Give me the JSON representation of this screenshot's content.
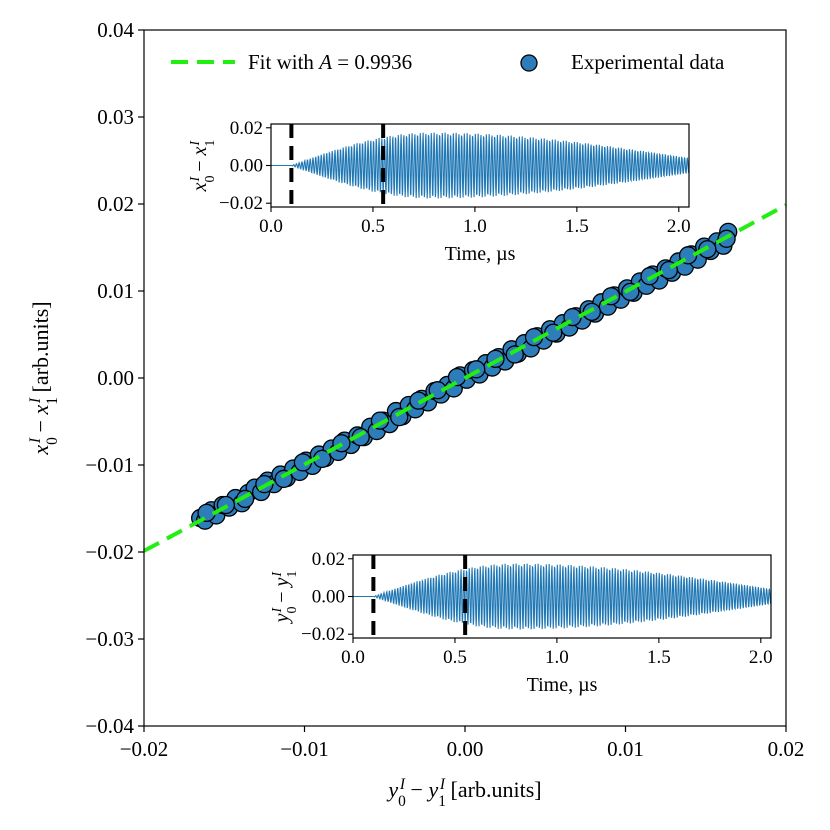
{
  "chart_data": {
    "type": "scatter",
    "main": {
      "xlabel_parts": [
        "y",
        "0",
        "I",
        " − ",
        "y",
        "1",
        "I",
        " [arb.units]"
      ],
      "ylabel_parts": [
        "x",
        "0",
        "I",
        " − ",
        "x",
        "1",
        "I",
        " [arb.units]"
      ],
      "xlim": [
        -0.02,
        0.02
      ],
      "ylim": [
        -0.04,
        0.04
      ],
      "xticks": [
        -0.02,
        -0.01,
        0.0,
        0.01,
        0.02
      ],
      "xtick_labels": [
        "−0.02",
        "−0.01",
        "0.00",
        "0.01",
        "0.02"
      ],
      "yticks": [
        -0.04,
        -0.03,
        -0.02,
        -0.01,
        0.0,
        0.01,
        0.02,
        0.03,
        0.04
      ],
      "ytick_labels": [
        "−0.04",
        "−0.03",
        "−0.02",
        "−0.01",
        "0.00",
        "0.01",
        "0.02",
        "0.03",
        "0.04"
      ],
      "grid": false,
      "legend_position": "top",
      "series": [
        {
          "name": "Fit with A = 0.9936",
          "legend_prefix": "Fit with ",
          "legend_var": "A",
          "legend_suffix": " = 0.9936",
          "kind": "line",
          "style": "dashed",
          "color": "#22ee11",
          "slope": 0.9936,
          "intercept": 0.0,
          "x": [
            -0.02,
            0.02
          ]
        },
        {
          "name": "Experimental data",
          "kind": "scatter",
          "color": "#2e7dbb",
          "edge_color": "#000000",
          "x": [
            -0.0165,
            -0.0162,
            -0.0158,
            -0.0155,
            -0.0151,
            -0.0147,
            -0.0143,
            -0.0139,
            -0.0135,
            -0.0131,
            -0.0127,
            -0.0123,
            -0.0119,
            -0.0115,
            -0.0111,
            -0.0107,
            -0.0103,
            -0.0099,
            -0.0095,
            -0.0091,
            -0.0087,
            -0.0083,
            -0.0079,
            -0.0075,
            -0.0071,
            -0.0067,
            -0.0063,
            -0.0059,
            -0.0055,
            -0.0051,
            -0.0047,
            -0.0043,
            -0.0039,
            -0.0035,
            -0.0031,
            -0.0027,
            -0.0023,
            -0.0019,
            -0.0015,
            -0.0011,
            -0.0007,
            -0.0003,
            0.0001,
            0.0005,
            0.0009,
            0.0013,
            0.0017,
            0.0021,
            0.0025,
            0.0029,
            0.0033,
            0.0037,
            0.0041,
            0.0045,
            0.0049,
            0.0053,
            0.0057,
            0.0061,
            0.0065,
            0.0069,
            0.0073,
            0.0077,
            0.0081,
            0.0085,
            0.0089,
            0.0093,
            0.0097,
            0.0101,
            0.0105,
            0.0109,
            0.0113,
            0.0117,
            0.0121,
            0.0125,
            0.0129,
            0.0133,
            0.0137,
            0.0141,
            0.0145,
            0.0149,
            0.0153,
            0.0157,
            0.0161,
            0.0164,
            -0.0161,
            -0.0149,
            -0.0137,
            -0.0125,
            -0.0113,
            -0.0101,
            -0.0089,
            -0.0077,
            -0.0065,
            -0.0053,
            -0.0041,
            -0.0029,
            -0.0017,
            -0.0005,
            0.0007,
            0.0019,
            0.0031,
            0.0043,
            0.0055,
            0.0067,
            0.0079,
            0.0091,
            0.0103,
            0.0115,
            0.0127,
            0.0139,
            0.0151,
            0.0163
          ],
          "y": [
            -0.0161,
            -0.0164,
            -0.0152,
            -0.0158,
            -0.0146,
            -0.0149,
            -0.0138,
            -0.0144,
            -0.0132,
            -0.0126,
            -0.0131,
            -0.0118,
            -0.0122,
            -0.0111,
            -0.0115,
            -0.0104,
            -0.0108,
            -0.0095,
            -0.0101,
            -0.0088,
            -0.0092,
            -0.0081,
            -0.0085,
            -0.0072,
            -0.0077,
            -0.0066,
            -0.0068,
            -0.0056,
            -0.0061,
            -0.0049,
            -0.0053,
            -0.0038,
            -0.0044,
            -0.0031,
            -0.0036,
            -0.0024,
            -0.0028,
            -0.0015,
            -0.0019,
            -0.0008,
            -0.0012,
            0.0003,
            -0.0002,
            0.0009,
            0.0004,
            0.0017,
            0.0012,
            0.0024,
            0.0019,
            0.0033,
            0.0028,
            0.004,
            0.0034,
            0.0048,
            0.0043,
            0.0056,
            0.0051,
            0.0063,
            0.0058,
            0.0071,
            0.0066,
            0.0079,
            0.0074,
            0.0087,
            0.0082,
            0.0095,
            0.009,
            0.0103,
            0.0098,
            0.0111,
            0.0106,
            0.0119,
            0.0112,
            0.0126,
            0.0121,
            0.0134,
            0.0128,
            0.0142,
            0.0136,
            0.0151,
            0.0146,
            0.0157,
            0.0152,
            0.0168,
            -0.0155,
            -0.0146,
            -0.0139,
            -0.0122,
            -0.0116,
            -0.0097,
            -0.0093,
            -0.0075,
            -0.0068,
            -0.0049,
            -0.0045,
            -0.0026,
            -0.0014,
            0.0001,
            0.001,
            0.0022,
            0.0027,
            0.0047,
            0.0052,
            0.007,
            0.0076,
            0.0094,
            0.0099,
            0.0117,
            0.0124,
            0.0141,
            0.0148,
            0.016
          ]
        }
      ]
    },
    "inset_top": {
      "type": "line",
      "ylabel_parts": [
        "x",
        "0",
        "I",
        " − ",
        "x",
        "1",
        "I"
      ],
      "xlabel": "Time, µs",
      "xlim": [
        0.0,
        2.05
      ],
      "ylim": [
        -0.022,
        0.022
      ],
      "xticks": [
        0.0,
        0.5,
        1.0,
        1.5,
        2.0
      ],
      "xtick_labels": [
        "0.0",
        "0.5",
        "1.0",
        "1.5",
        "2.0"
      ],
      "yticks": [
        -0.02,
        0.0,
        0.02
      ],
      "ytick_labels": [
        "−0.02",
        "0.00",
        "0.02"
      ],
      "signal": {
        "color": "#1f77b4",
        "start": 0.1,
        "peak_time": 0.78,
        "peak_amplitude": 0.0175,
        "end_amplitude": 0.004,
        "period": 0.0135
      },
      "markers": [
        0.1,
        0.55
      ]
    },
    "inset_bottom": {
      "type": "line",
      "ylabel_parts": [
        "y",
        "0",
        "I",
        " − ",
        "y",
        "1",
        "I"
      ],
      "xlabel": "Time, µs",
      "xlim": [
        0.0,
        2.05
      ],
      "ylim": [
        -0.022,
        0.022
      ],
      "xticks": [
        0.0,
        0.5,
        1.0,
        1.5,
        2.0
      ],
      "xtick_labels": [
        "0.0",
        "0.5",
        "1.0",
        "1.5",
        "2.0"
      ],
      "yticks": [
        -0.02,
        0.0,
        0.02
      ],
      "ytick_labels": [
        "−0.02",
        "0.00",
        "0.02"
      ],
      "signal": {
        "color": "#1f77b4",
        "start": 0.1,
        "peak_time": 0.8,
        "peak_amplitude": 0.0175,
        "end_amplitude": 0.004,
        "period": 0.0135
      },
      "markers": [
        0.1,
        0.55
      ]
    }
  }
}
